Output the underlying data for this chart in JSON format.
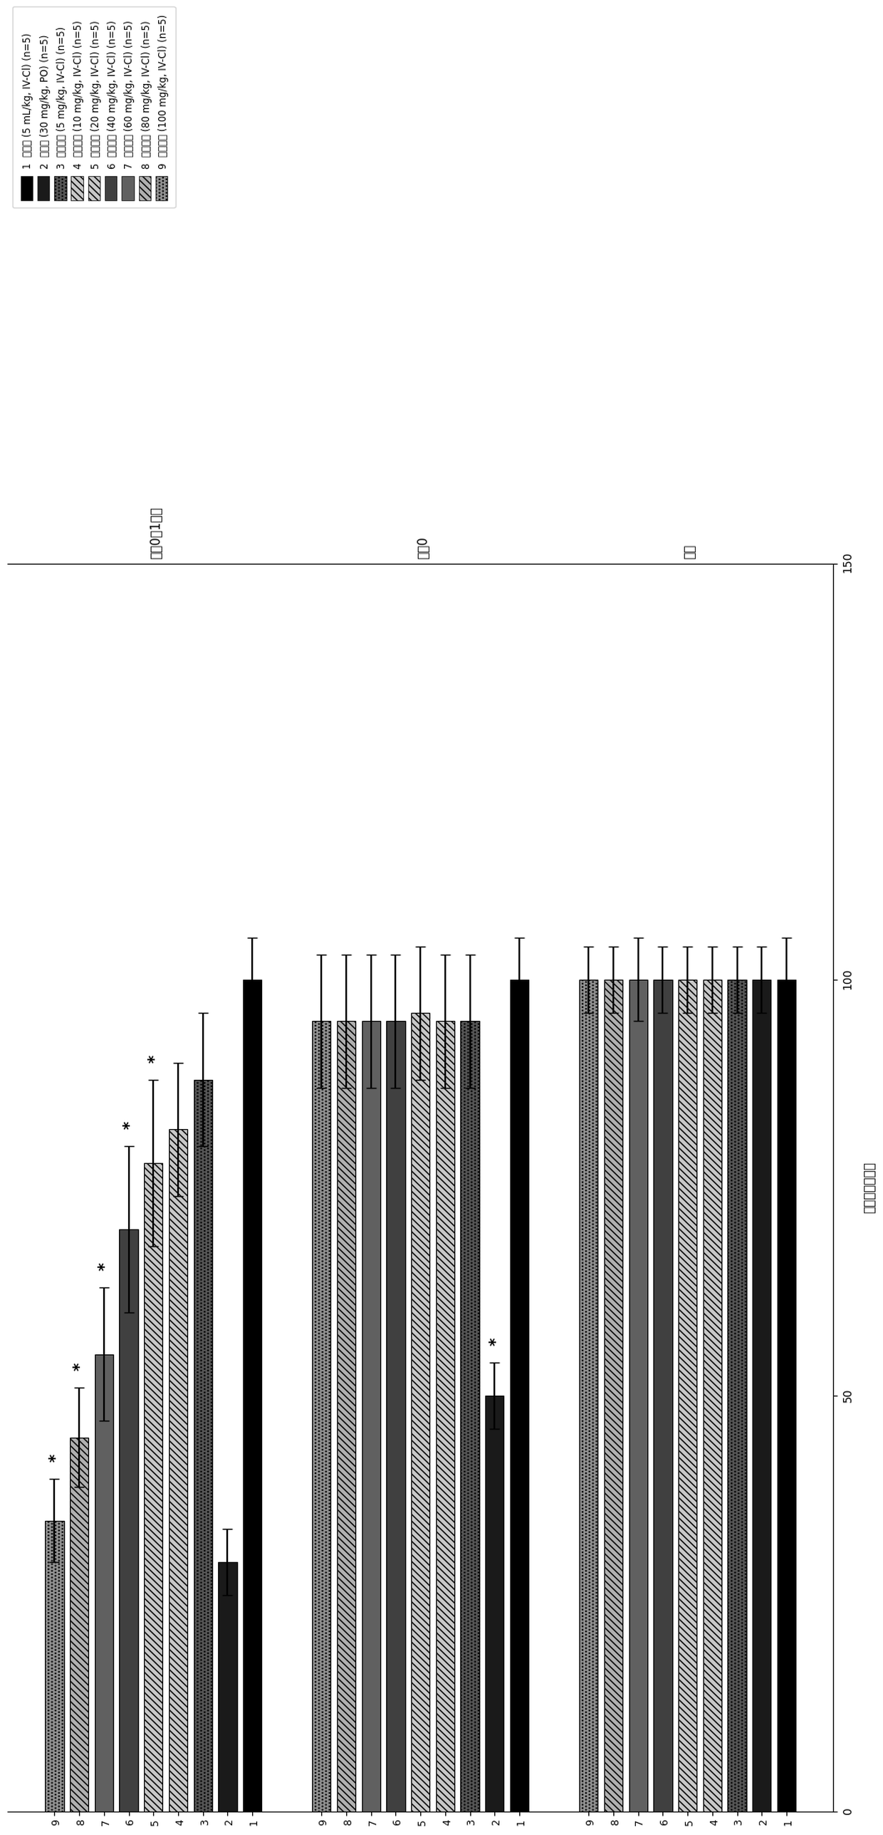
{
  "xlabel": "疼痛强度（分）",
  "xlim_max": 150,
  "groups": [
    "基线",
    "时间0",
    "时间0后1小时"
  ],
  "n_bars": 9,
  "legend_labels": [
    "1  载体物 (5 mL/kg, IV-Cl) (n=5)",
    "2  氯丙和 (30 mg/kg, PO) (n=5)",
    "3  普瑞巴林 (5 mg/kg, IV-Cl) (n=5)",
    "4  普瑞巴林 (10 mg/kg, IV-Cl) (n=5)",
    "5  普瑞巴林 (20 mg/kg, IV-Cl) (n=5)",
    "6  普瑞巴林 (40 mg/kg, IV-Cl) (n=5)",
    "7  普瑞巴林 (60 mg/kg, IV-Cl) (n=5)",
    "8  普瑞巴林 (80 mg/kg, IV-Cl) (n=5)",
    "9  普瑞巴林 (100 mg/kg, IV-Cl) (n=5)"
  ],
  "bar_styles": [
    {
      "color": "#000000",
      "hatch": ""
    },
    {
      "color": "#1a1a1a",
      "hatch": ""
    },
    {
      "color": "#555555",
      "hatch": "...."
    },
    {
      "color": "#c8c8c8",
      "hatch": "////"
    },
    {
      "color": "#c8c8c8",
      "hatch": "////"
    },
    {
      "color": "#404040",
      "hatch": ""
    },
    {
      "color": "#606060",
      "hatch": ""
    },
    {
      "color": "#b0b0b0",
      "hatch": "////"
    },
    {
      "color": "#909090",
      "hatch": "...."
    }
  ],
  "baseline_values": [
    100,
    100,
    100,
    100,
    100,
    100,
    100,
    100,
    100
  ],
  "baseline_errors": [
    5,
    4,
    4,
    4,
    4,
    4,
    5,
    4,
    4
  ],
  "baseline_sig": [
    false,
    false,
    false,
    false,
    false,
    false,
    false,
    false,
    false
  ],
  "time0_values": [
    100,
    50,
    95,
    95,
    96,
    95,
    95,
    95,
    95
  ],
  "time0_errors": [
    5,
    4,
    8,
    8,
    8,
    8,
    8,
    8,
    8
  ],
  "time0_sig": [
    false,
    true,
    false,
    false,
    false,
    false,
    false,
    false,
    false
  ],
  "time1h_values": [
    100,
    30,
    88,
    82,
    78,
    70,
    55,
    45,
    35
  ],
  "time1h_errors": [
    5,
    4,
    8,
    8,
    10,
    10,
    8,
    6,
    5
  ],
  "time1h_sig": [
    false,
    false,
    false,
    false,
    true,
    true,
    true,
    true,
    true
  ]
}
